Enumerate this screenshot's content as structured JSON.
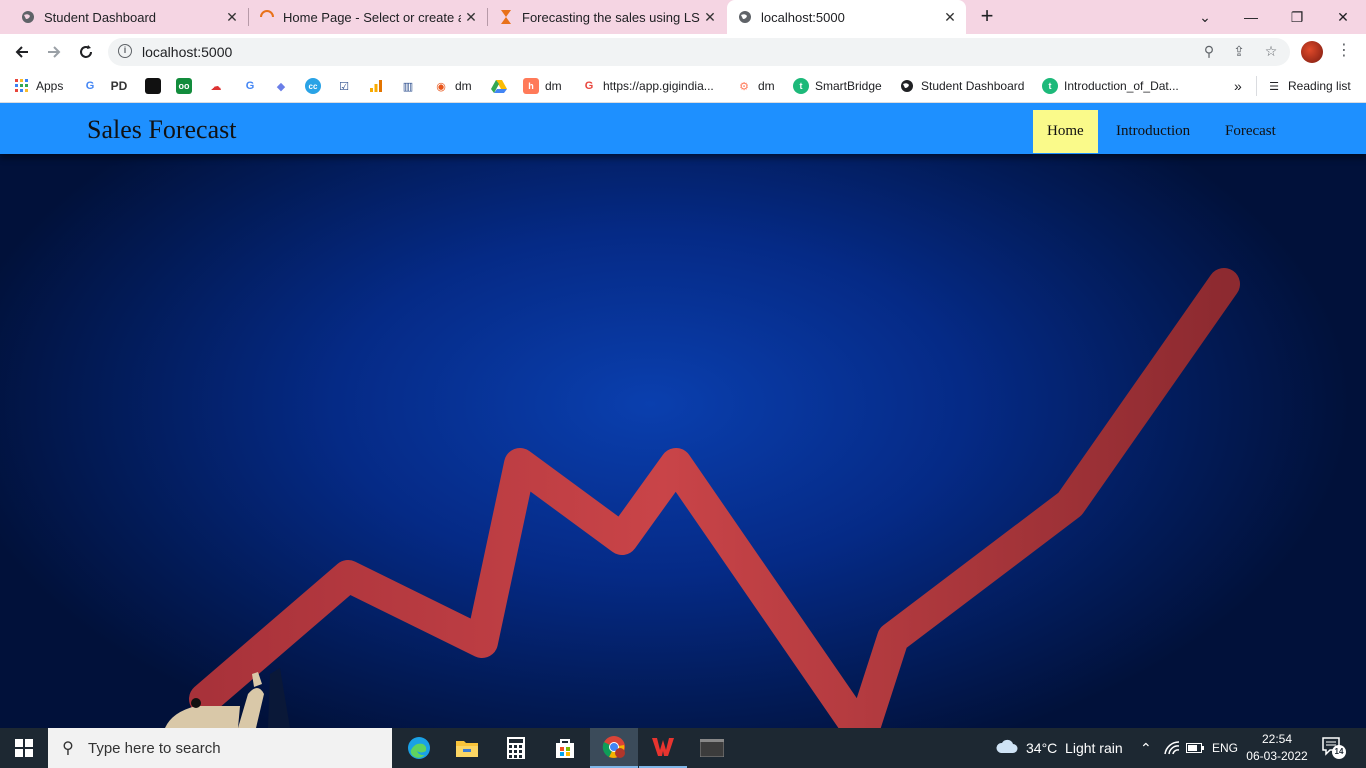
{
  "browser": {
    "tabs": [
      {
        "title": "Student Dashboard",
        "icon": "globe-icon"
      },
      {
        "title": "Home Page - Select or create a n",
        "icon": "loading-icon"
      },
      {
        "title": "Forecasting the sales using LSTM",
        "icon": "hourglass-icon"
      },
      {
        "title": "localhost:5000",
        "icon": "globe-icon",
        "active": true
      }
    ],
    "url": "localhost:5000",
    "bookmarks": [
      {
        "label": "Apps"
      },
      {
        "label": "dm"
      },
      {
        "label": "dm"
      },
      {
        "label": "https://app.gigindia..."
      },
      {
        "label": "dm"
      },
      {
        "label": "SmartBridge"
      },
      {
        "label": "Student Dashboard"
      },
      {
        "label": "Introduction_of_Dat..."
      },
      {
        "label": "Reading list"
      }
    ]
  },
  "site": {
    "brand": "Sales Forecast",
    "nav": [
      {
        "label": "Home",
        "active": true
      },
      {
        "label": "Introduction"
      },
      {
        "label": "Forecast"
      }
    ],
    "colors": {
      "navbar": "#1e90ff",
      "active_link": "#fafa8a",
      "hero": "#052a86",
      "trend_line": "#c0383c"
    }
  },
  "taskbar": {
    "search_placeholder": "Type here to search",
    "weather": "34°C  Light rain",
    "language": "ENG",
    "time": "22:54",
    "date": "06-03-2022",
    "notification_count": "14"
  }
}
